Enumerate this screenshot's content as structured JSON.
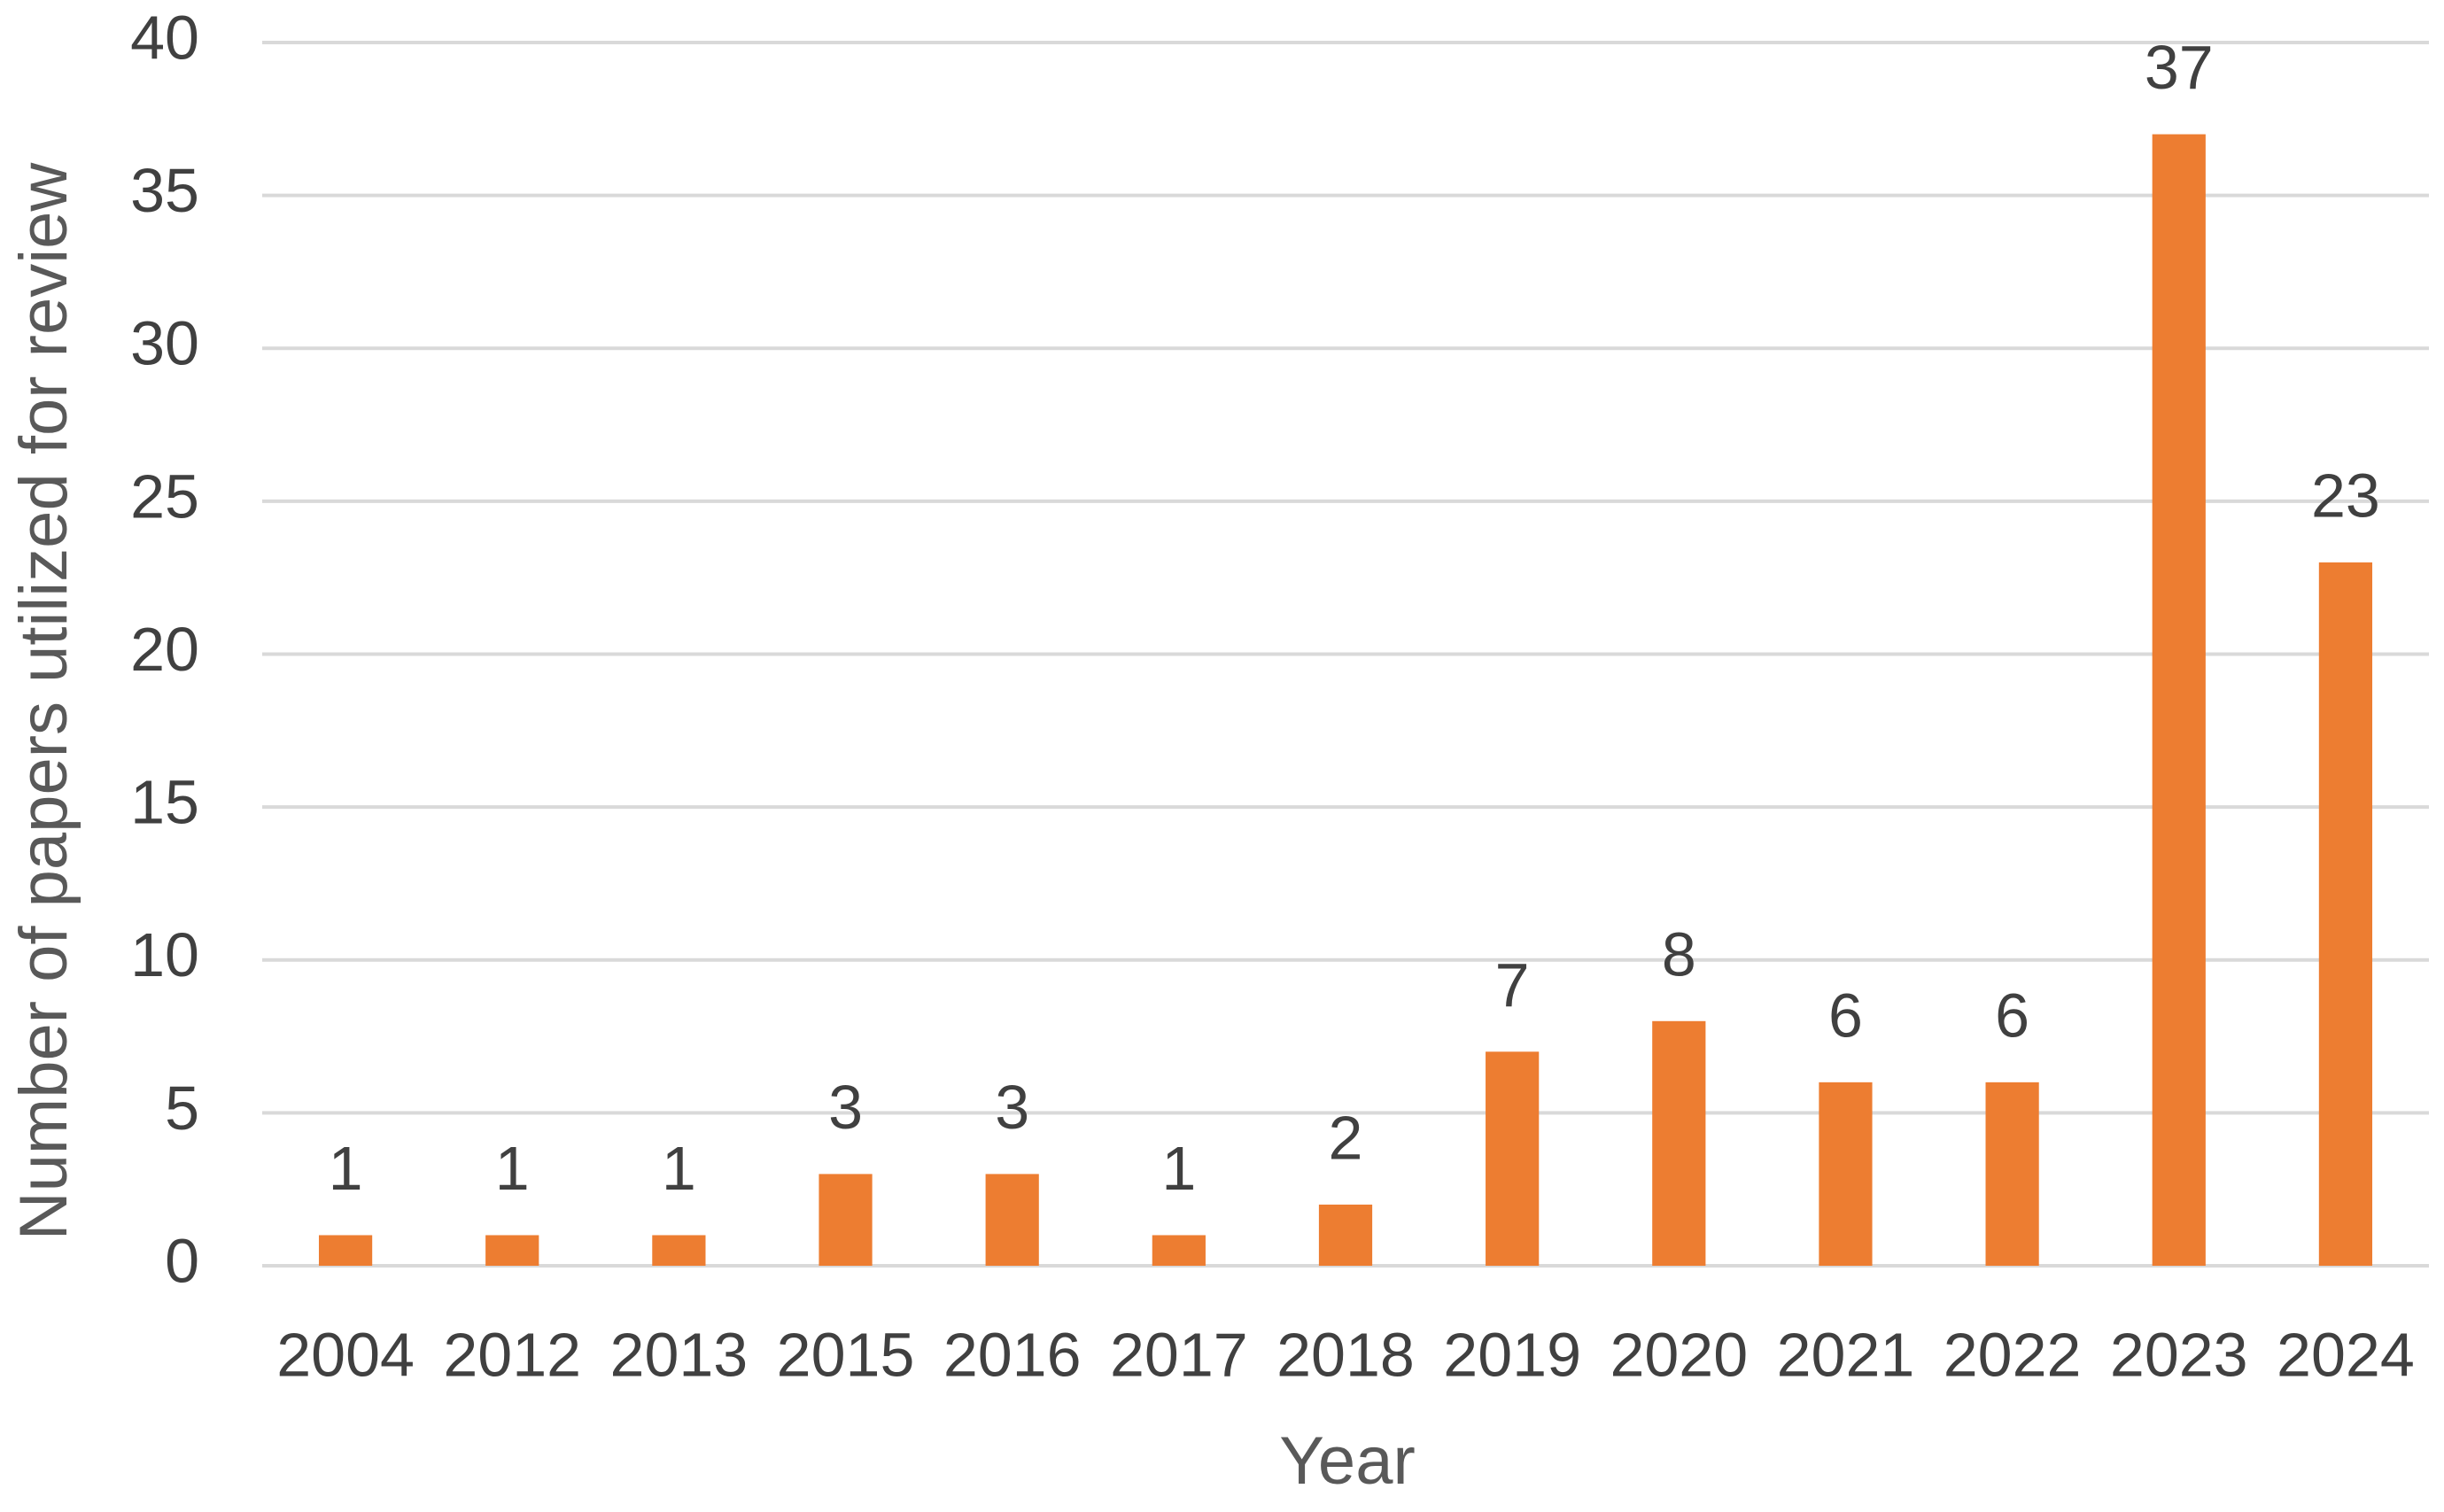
{
  "chart_data": {
    "type": "bar",
    "x_label": "Year",
    "y_label": "Number of papers utilized for review",
    "categories": [
      "2004",
      "2012",
      "2013",
      "2015",
      "2016",
      "2017",
      "2018",
      "2019",
      "2020",
      "2021",
      "2022",
      "2023",
      "2024"
    ],
    "values": [
      1,
      1,
      1,
      3,
      3,
      1,
      2,
      7,
      8,
      6,
      6,
      37,
      23
    ],
    "color": "#ed7d31",
    "ylim": [
      0,
      40
    ],
    "yticks": [
      0,
      5,
      10,
      15,
      20,
      25,
      30,
      35,
      40
    ],
    "grid": true
  }
}
